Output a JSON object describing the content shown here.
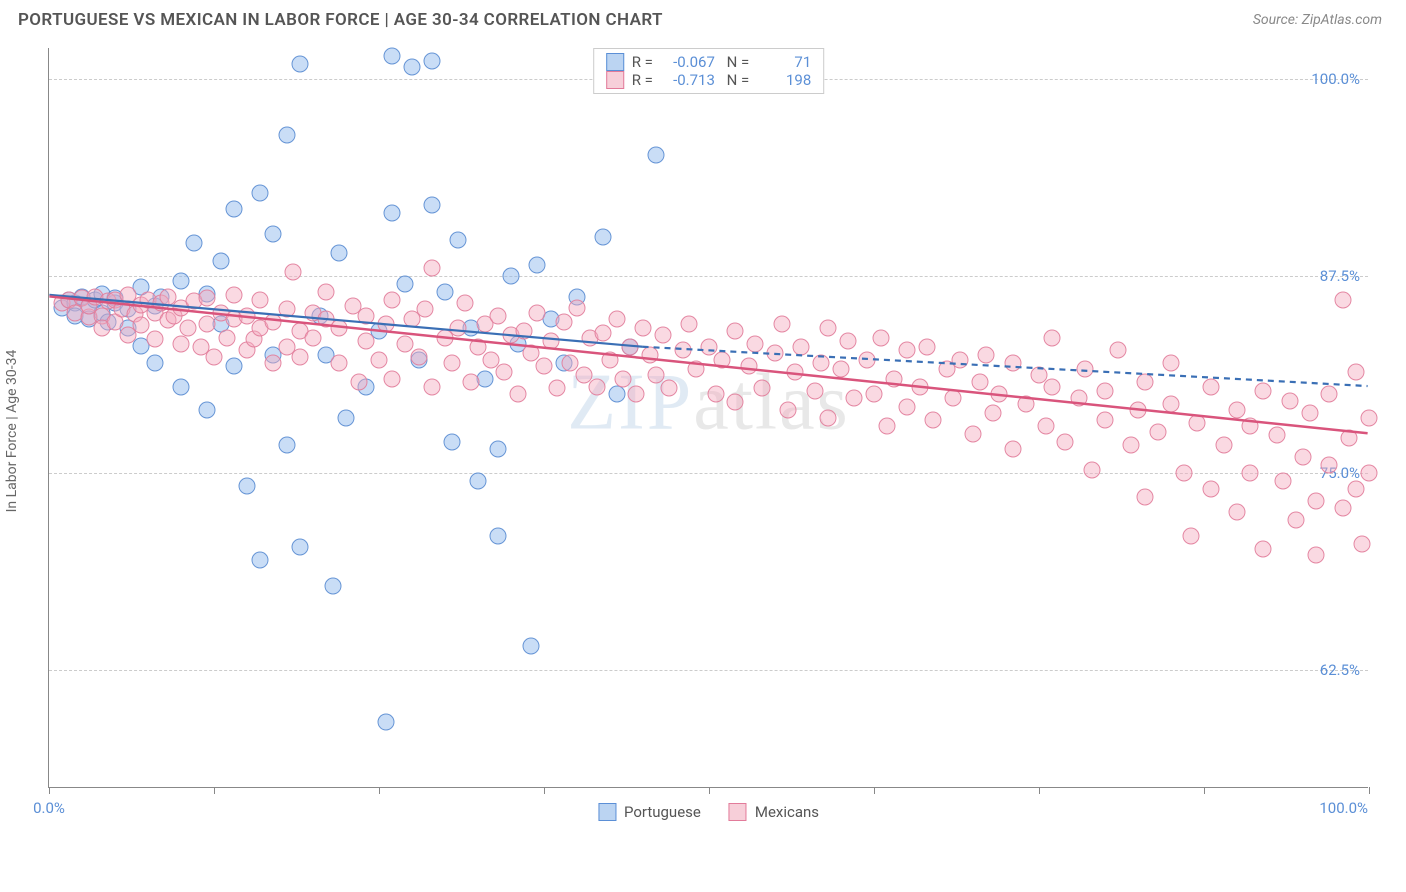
{
  "title": "PORTUGUESE VS MEXICAN IN LABOR FORCE | AGE 30-34 CORRELATION CHART",
  "source": "Source: ZipAtlas.com",
  "ylabel": "In Labor Force | Age 30-34",
  "watermark_bold": "ZIP",
  "watermark_thin": "atlas",
  "chart": {
    "type": "scatter",
    "background_color": "#ffffff",
    "grid_color": "#cccccc",
    "axis_color": "#888888",
    "label_color": "#5b8fd6",
    "xlim": [
      0,
      100
    ],
    "ylim": [
      55,
      102
    ],
    "xtick_positions": [
      0,
      12.5,
      25,
      37.5,
      50,
      62.5,
      75,
      87.5,
      100
    ],
    "xtick_labels_left": "0.0%",
    "xtick_labels_right": "100.0%",
    "ytick_positions": [
      62.5,
      75.0,
      87.5,
      100.0
    ],
    "ytick_labels": [
      "62.5%",
      "75.0%",
      "87.5%",
      "100.0%"
    ],
    "marker_size": 17,
    "marker_opacity": 0.45,
    "series": [
      {
        "name": "Portuguese",
        "color_fill": "rgba(135,180,235,0.45)",
        "color_stroke": "#5b8fd6",
        "R": "-0.067",
        "N": "71",
        "regression": {
          "x1": 0,
          "y1": 86.3,
          "x2": 45,
          "y2": 83.0,
          "dash_after_x": 45,
          "x3": 100,
          "y3": 80.5,
          "stroke": "#3a6fb5",
          "width": 2.2
        },
        "points": [
          [
            1,
            85.5
          ],
          [
            1.5,
            86
          ],
          [
            2,
            85.8
          ],
          [
            2,
            85
          ],
          [
            2.5,
            86.2
          ],
          [
            3,
            85.6
          ],
          [
            3,
            84.8
          ],
          [
            3.5,
            86
          ],
          [
            4,
            85.2
          ],
          [
            4,
            86.4
          ],
          [
            4.5,
            84.6
          ],
          [
            5,
            85.8
          ],
          [
            5,
            86.1
          ],
          [
            6,
            85.4
          ],
          [
            6,
            84.2
          ],
          [
            7,
            86.8
          ],
          [
            7,
            83.1
          ],
          [
            8,
            85.6
          ],
          [
            8,
            82.0
          ],
          [
            8.5,
            86.2
          ],
          [
            10,
            80.5
          ],
          [
            10,
            87.2
          ],
          [
            11,
            89.6
          ],
          [
            12,
            86.4
          ],
          [
            12,
            79.0
          ],
          [
            13,
            88.5
          ],
          [
            13,
            84.5
          ],
          [
            14,
            91.8
          ],
          [
            14,
            81.8
          ],
          [
            15,
            74.2
          ],
          [
            16,
            69.5
          ],
          [
            16,
            92.8
          ],
          [
            17,
            82.5
          ],
          [
            17,
            90.2
          ],
          [
            18,
            96.5
          ],
          [
            18,
            76.8
          ],
          [
            19,
            101
          ],
          [
            19,
            70.3
          ],
          [
            20.5,
            85.0
          ],
          [
            21,
            82.5
          ],
          [
            21.5,
            67.8
          ],
          [
            22,
            89.0
          ],
          [
            22.5,
            78.5
          ],
          [
            24,
            80.5
          ],
          [
            25,
            84.0
          ],
          [
            25.5,
            59.2
          ],
          [
            26,
            91.5
          ],
          [
            26,
            101.5
          ],
          [
            27,
            87.0
          ],
          [
            27.5,
            100.8
          ],
          [
            28,
            82.2
          ],
          [
            29,
            92.0
          ],
          [
            29,
            101.2
          ],
          [
            30,
            86.5
          ],
          [
            30.5,
            77.0
          ],
          [
            31,
            89.8
          ],
          [
            32,
            84.2
          ],
          [
            32.5,
            74.5
          ],
          [
            33,
            81.0
          ],
          [
            34,
            76.5
          ],
          [
            34,
            71.0
          ],
          [
            35,
            87.5
          ],
          [
            35.5,
            83.2
          ],
          [
            36.5,
            64.0
          ],
          [
            37,
            88.2
          ],
          [
            38,
            84.8
          ],
          [
            39,
            82.0
          ],
          [
            40,
            86.2
          ],
          [
            42,
            90.0
          ],
          [
            43,
            80.0
          ],
          [
            44,
            83.0
          ],
          [
            46,
            95.2
          ]
        ]
      },
      {
        "name": "Mexicans",
        "color_fill": "rgba(245,170,190,0.45)",
        "color_stroke": "#e27b9a",
        "R": "-0.713",
        "N": "198",
        "regression": {
          "x1": 0,
          "y1": 86.2,
          "x2": 100,
          "y2": 77.5,
          "stroke": "#d9547c",
          "width": 2.5
        },
        "points": [
          [
            1,
            85.8
          ],
          [
            1.5,
            86.0
          ],
          [
            2,
            85.2
          ],
          [
            2.5,
            86.1
          ],
          [
            3,
            84.9
          ],
          [
            3,
            85.6
          ],
          [
            3.5,
            86.2
          ],
          [
            4,
            85.0
          ],
          [
            4,
            84.2
          ],
          [
            4.5,
            85.9
          ],
          [
            5,
            86.0
          ],
          [
            5,
            84.6
          ],
          [
            5.5,
            85.4
          ],
          [
            6,
            86.3
          ],
          [
            6,
            83.8
          ],
          [
            6.5,
            85.1
          ],
          [
            7,
            85.7
          ],
          [
            7,
            84.4
          ],
          [
            7.5,
            86.0
          ],
          [
            8,
            85.2
          ],
          [
            8,
            83.5
          ],
          [
            8.5,
            85.8
          ],
          [
            9,
            84.7
          ],
          [
            9,
            86.2
          ],
          [
            9.5,
            85.0
          ],
          [
            10,
            83.2
          ],
          [
            10,
            85.5
          ],
          [
            10.5,
            84.2
          ],
          [
            11,
            85.9
          ],
          [
            11.5,
            83.0
          ],
          [
            12,
            84.5
          ],
          [
            12,
            86.1
          ],
          [
            12.5,
            82.4
          ],
          [
            13,
            85.2
          ],
          [
            13.5,
            83.6
          ],
          [
            14,
            84.8
          ],
          [
            14,
            86.3
          ],
          [
            15,
            82.8
          ],
          [
            15,
            85.0
          ],
          [
            15.5,
            83.5
          ],
          [
            16,
            84.2
          ],
          [
            16,
            86.0
          ],
          [
            17,
            82.0
          ],
          [
            17,
            84.6
          ],
          [
            18,
            85.4
          ],
          [
            18,
            83.0
          ],
          [
            18.5,
            87.8
          ],
          [
            19,
            84.0
          ],
          [
            19,
            82.4
          ],
          [
            20,
            85.2
          ],
          [
            20,
            83.6
          ],
          [
            21,
            84.8
          ],
          [
            21,
            86.5
          ],
          [
            22,
            82.0
          ],
          [
            22,
            84.2
          ],
          [
            23,
            85.6
          ],
          [
            23.5,
            80.8
          ],
          [
            24,
            83.4
          ],
          [
            24,
            85.0
          ],
          [
            25,
            82.2
          ],
          [
            25.5,
            84.5
          ],
          [
            26,
            86.0
          ],
          [
            26,
            81.0
          ],
          [
            27,
            83.2
          ],
          [
            27.5,
            84.8
          ],
          [
            28,
            82.4
          ],
          [
            28.5,
            85.4
          ],
          [
            29,
            80.5
          ],
          [
            29,
            88.0
          ],
          [
            30,
            83.6
          ],
          [
            30.5,
            82.0
          ],
          [
            31,
            84.2
          ],
          [
            31.5,
            85.8
          ],
          [
            32,
            80.8
          ],
          [
            32.5,
            83.0
          ],
          [
            33,
            84.5
          ],
          [
            33.5,
            82.2
          ],
          [
            34,
            85.0
          ],
          [
            34.5,
            81.4
          ],
          [
            35,
            83.8
          ],
          [
            35.5,
            80.0
          ],
          [
            36,
            84.0
          ],
          [
            36.5,
            82.6
          ],
          [
            37,
            85.2
          ],
          [
            37.5,
            81.8
          ],
          [
            38,
            83.4
          ],
          [
            38.5,
            80.4
          ],
          [
            39,
            84.6
          ],
          [
            39.5,
            82.0
          ],
          [
            40,
            85.5
          ],
          [
            40.5,
            81.2
          ],
          [
            41,
            83.6
          ],
          [
            41.5,
            80.5
          ],
          [
            42,
            83.9
          ],
          [
            42.5,
            82.2
          ],
          [
            43,
            84.8
          ],
          [
            43.5,
            81.0
          ],
          [
            44,
            83.0
          ],
          [
            44.5,
            80.0
          ],
          [
            45,
            84.2
          ],
          [
            45.5,
            82.5
          ],
          [
            46,
            81.2
          ],
          [
            46.5,
            83.8
          ],
          [
            47,
            80.4
          ],
          [
            48,
            82.8
          ],
          [
            48.5,
            84.5
          ],
          [
            49,
            81.6
          ],
          [
            50,
            83.0
          ],
          [
            50.5,
            80.0
          ],
          [
            51,
            82.2
          ],
          [
            52,
            84.0
          ],
          [
            52,
            79.5
          ],
          [
            53,
            81.8
          ],
          [
            53.5,
            83.2
          ],
          [
            54,
            80.4
          ],
          [
            55,
            82.6
          ],
          [
            55.5,
            84.5
          ],
          [
            56,
            79.0
          ],
          [
            56.5,
            81.4
          ],
          [
            57,
            83.0
          ],
          [
            58,
            80.2
          ],
          [
            58.5,
            82.0
          ],
          [
            59,
            84.2
          ],
          [
            59,
            78.5
          ],
          [
            60,
            81.6
          ],
          [
            60.5,
            83.4
          ],
          [
            61,
            79.8
          ],
          [
            62,
            82.2
          ],
          [
            62.5,
            80.0
          ],
          [
            63,
            83.6
          ],
          [
            63.5,
            78.0
          ],
          [
            64,
            81.0
          ],
          [
            65,
            82.8
          ],
          [
            65,
            79.2
          ],
          [
            66,
            80.5
          ],
          [
            66.5,
            83.0
          ],
          [
            67,
            78.4
          ],
          [
            68,
            81.6
          ],
          [
            68.5,
            79.8
          ],
          [
            69,
            82.2
          ],
          [
            70,
            77.5
          ],
          [
            70.5,
            80.8
          ],
          [
            71,
            82.5
          ],
          [
            71.5,
            78.8
          ],
          [
            72,
            80.0
          ],
          [
            73,
            82.0
          ],
          [
            73,
            76.5
          ],
          [
            74,
            79.4
          ],
          [
            75,
            81.2
          ],
          [
            75.5,
            78.0
          ],
          [
            76,
            80.5
          ],
          [
            76,
            83.6
          ],
          [
            77,
            77.0
          ],
          [
            78,
            79.8
          ],
          [
            78.5,
            81.6
          ],
          [
            79,
            75.2
          ],
          [
            80,
            78.4
          ],
          [
            80,
            80.2
          ],
          [
            81,
            82.8
          ],
          [
            82,
            76.8
          ],
          [
            82.5,
            79.0
          ],
          [
            83,
            80.8
          ],
          [
            83,
            73.5
          ],
          [
            84,
            77.6
          ],
          [
            85,
            79.4
          ],
          [
            85,
            82.0
          ],
          [
            86,
            75.0
          ],
          [
            86.5,
            71.0
          ],
          [
            87,
            78.2
          ],
          [
            88,
            80.5
          ],
          [
            88,
            74.0
          ],
          [
            89,
            76.8
          ],
          [
            90,
            79.0
          ],
          [
            90,
            72.5
          ],
          [
            91,
            78.0
          ],
          [
            91,
            75.0
          ],
          [
            92,
            80.2
          ],
          [
            92,
            70.2
          ],
          [
            93,
            77.4
          ],
          [
            93.5,
            74.5
          ],
          [
            94,
            79.6
          ],
          [
            94.5,
            72.0
          ],
          [
            95,
            76.0
          ],
          [
            95.5,
            78.8
          ],
          [
            96,
            73.2
          ],
          [
            96,
            69.8
          ],
          [
            97,
            75.5
          ],
          [
            97,
            80.0
          ],
          [
            98,
            86.0
          ],
          [
            98,
            72.8
          ],
          [
            98.5,
            77.2
          ],
          [
            99,
            74.0
          ],
          [
            99,
            81.4
          ],
          [
            99.5,
            70.5
          ],
          [
            100,
            78.5
          ],
          [
            100,
            75.0
          ]
        ]
      }
    ],
    "legend_bottom": [
      {
        "label": "Portuguese",
        "swatch": "blue"
      },
      {
        "label": "Mexicans",
        "swatch": "pink"
      }
    ]
  }
}
